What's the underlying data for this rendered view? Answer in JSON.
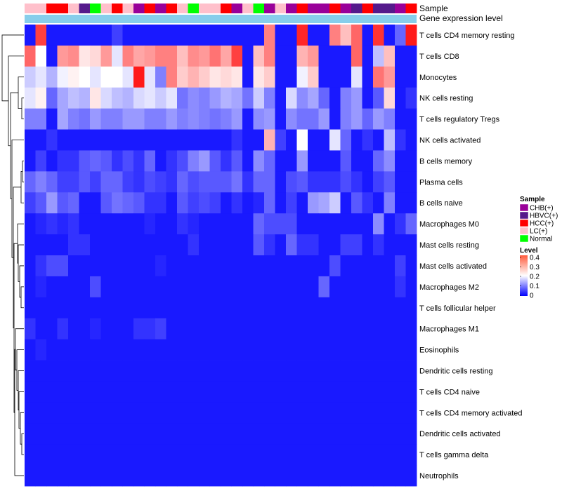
{
  "chart_data": {
    "type": "heatmap",
    "top_annotations": [
      "Sample",
      "Gene expression level"
    ],
    "rows": [
      "T cells CD4 memory resting",
      "T cells CD8",
      "Monocytes",
      "NK cells resting",
      "T cells regulatory  Tregs",
      "NK cells activated",
      "B cells memory",
      "Plasma cells",
      "B cells naive",
      "Macrophages M0",
      "Mast cells resting",
      "Mast cells activated",
      "Macrophages M2",
      "T cells follicular helper",
      "Macrophages M1",
      "Eosinophils",
      "Dendritic cells resting",
      "T cells CD4 naive",
      "T cells CD4 memory activated",
      "Dendritic cells activated",
      "T cells gamma delta",
      "Neutrophils"
    ],
    "sample_groups": [
      "LC",
      "LC",
      "HCC",
      "HCC",
      "LC",
      "HBVC",
      "Normal",
      "LC",
      "HCC",
      "LC",
      "CHB",
      "HCC",
      "CHB",
      "HCC",
      "LC",
      "Normal",
      "LC",
      "LC",
      "HCC",
      "CHB",
      "LC",
      "Normal",
      "CHB",
      "LC",
      "CHB",
      "HCC",
      "CHB",
      "CHB",
      "HCC",
      "CHB",
      "HBVC",
      "HCC",
      "HBVC",
      "HBVC",
      "CHB",
      "HCC"
    ],
    "values": [
      [
        0.02,
        0.35,
        0.02,
        0.02,
        0.02,
        0.02,
        0.02,
        0.02,
        0.05,
        0.02,
        0.02,
        0.02,
        0.02,
        0.02,
        0.02,
        0.02,
        0.02,
        0.02,
        0.02,
        0.02,
        0.02,
        0.02,
        0.3,
        0.02,
        0.02,
        0.37,
        0.02,
        0.02,
        0.3,
        0.25,
        0.32,
        0.02,
        0.36,
        0.02,
        0.08,
        0.38
      ],
      [
        0.32,
        0.2,
        0.02,
        0.28,
        0.29,
        0.22,
        0.23,
        0.28,
        0.18,
        0.3,
        0.27,
        0.28,
        0.3,
        0.3,
        0.25,
        0.29,
        0.28,
        0.31,
        0.27,
        0.35,
        0.02,
        0.25,
        0.3,
        0.02,
        0.02,
        0.26,
        0.28,
        0.02,
        0.02,
        0.02,
        0.32,
        0.02,
        0.15,
        0.25,
        0.02,
        0.02
      ],
      [
        0.16,
        0.18,
        0.14,
        0.19,
        0.21,
        0.2,
        0.18,
        0.2,
        0.2,
        0.18,
        0.38,
        0.18,
        0.1,
        0.3,
        0.24,
        0.26,
        0.24,
        0.22,
        0.23,
        0.22,
        0.02,
        0.22,
        0.24,
        0.02,
        0.02,
        0.19,
        0.24,
        0.02,
        0.02,
        0.02,
        0.18,
        0.02,
        0.31,
        0.28,
        0.02,
        0.02
      ],
      [
        0.18,
        0.21,
        0.08,
        0.13,
        0.15,
        0.14,
        0.22,
        0.17,
        0.15,
        0.14,
        0.17,
        0.18,
        0.16,
        0.18,
        0.09,
        0.11,
        0.1,
        0.12,
        0.14,
        0.13,
        0.09,
        0.16,
        0.1,
        0.02,
        0.17,
        0.11,
        0.13,
        0.08,
        0.02,
        0.1,
        0.12,
        0.02,
        0.07,
        0.23,
        0.02,
        0.04
      ],
      [
        0.1,
        0.1,
        0.02,
        0.13,
        0.1,
        0.09,
        0.12,
        0.1,
        0.1,
        0.12,
        0.12,
        0.1,
        0.1,
        0.12,
        0.1,
        0.11,
        0.1,
        0.09,
        0.1,
        0.12,
        0.02,
        0.11,
        0.12,
        0.02,
        0.11,
        0.09,
        0.09,
        0.12,
        0.02,
        0.1,
        0.12,
        0.08,
        0.12,
        0.1,
        0.02,
        0.02
      ],
      [
        0.02,
        0.02,
        0.04,
        0.02,
        0.02,
        0.02,
        0.02,
        0.02,
        0.02,
        0.02,
        0.02,
        0.02,
        0.02,
        0.02,
        0.02,
        0.02,
        0.02,
        0.02,
        0.02,
        0.04,
        0.02,
        0.02,
        0.26,
        0.05,
        0.02,
        0.2,
        0.02,
        0.02,
        0.18,
        0.08,
        0.02,
        0.04,
        0.02,
        0.15,
        0.04,
        0.02
      ],
      [
        0.02,
        0.05,
        0.02,
        0.04,
        0.04,
        0.07,
        0.08,
        0.07,
        0.04,
        0.06,
        0.04,
        0.08,
        0.02,
        0.04,
        0.06,
        0.1,
        0.12,
        0.07,
        0.04,
        0.07,
        0.02,
        0.11,
        0.08,
        0.02,
        0.02,
        0.12,
        0.02,
        0.02,
        0.02,
        0.07,
        0.02,
        0.02,
        0.08,
        0.11,
        0.02,
        0.02
      ],
      [
        0.08,
        0.1,
        0.08,
        0.05,
        0.05,
        0.07,
        0.05,
        0.08,
        0.08,
        0.05,
        0.04,
        0.06,
        0.05,
        0.04,
        0.08,
        0.06,
        0.07,
        0.07,
        0.07,
        0.09,
        0.04,
        0.08,
        0.08,
        0.02,
        0.06,
        0.07,
        0.04,
        0.04,
        0.04,
        0.06,
        0.04,
        0.02,
        0.05,
        0.07,
        0.02,
        0.02
      ],
      [
        0.05,
        0.07,
        0.12,
        0.07,
        0.08,
        0.02,
        0.02,
        0.07,
        0.09,
        0.08,
        0.07,
        0.04,
        0.04,
        0.02,
        0.07,
        0.05,
        0.06,
        0.05,
        0.02,
        0.04,
        0.02,
        0.03,
        0.08,
        0.02,
        0.05,
        0.02,
        0.12,
        0.13,
        0.16,
        0.02,
        0.07,
        0.04,
        0.02,
        0.1,
        0.02,
        0.02
      ],
      [
        0.02,
        0.03,
        0.04,
        0.03,
        0.04,
        0.02,
        0.02,
        0.02,
        0.02,
        0.02,
        0.02,
        0.03,
        0.02,
        0.02,
        0.04,
        0.03,
        0.02,
        0.02,
        0.02,
        0.02,
        0.02,
        0.08,
        0.06,
        0.06,
        0.06,
        0.02,
        0.02,
        0.02,
        0.02,
        0.02,
        0.02,
        0.02,
        0.11,
        0.02,
        0.04,
        0.08
      ],
      [
        0.02,
        0.02,
        0.02,
        0.02,
        0.04,
        0.04,
        0.02,
        0.02,
        0.02,
        0.02,
        0.02,
        0.02,
        0.02,
        0.02,
        0.02,
        0.04,
        0.02,
        0.02,
        0.02,
        0.02,
        0.02,
        0.07,
        0.04,
        0.02,
        0.08,
        0.04,
        0.04,
        0.02,
        0.02,
        0.05,
        0.05,
        0.02,
        0.04,
        0.02,
        0.02,
        0.02
      ],
      [
        0.02,
        0.04,
        0.06,
        0.06,
        0.02,
        0.02,
        0.02,
        0.02,
        0.02,
        0.02,
        0.02,
        0.02,
        0.03,
        0.02,
        0.02,
        0.02,
        0.02,
        0.02,
        0.02,
        0.02,
        0.02,
        0.02,
        0.02,
        0.02,
        0.02,
        0.02,
        0.02,
        0.02,
        0.06,
        0.02,
        0.02,
        0.02,
        0.02,
        0.02,
        0.05,
        0.02
      ],
      [
        0.02,
        0.03,
        0.02,
        0.02,
        0.02,
        0.02,
        0.06,
        0.02,
        0.02,
        0.02,
        0.02,
        0.02,
        0.02,
        0.02,
        0.02,
        0.02,
        0.02,
        0.02,
        0.02,
        0.02,
        0.02,
        0.02,
        0.02,
        0.02,
        0.02,
        0.02,
        0.02,
        0.08,
        0.02,
        0.02,
        0.02,
        0.02,
        0.02,
        0.02,
        0.04,
        0.02
      ],
      [
        0.02,
        0.02,
        0.02,
        0.02,
        0.02,
        0.02,
        0.02,
        0.02,
        0.02,
        0.02,
        0.02,
        0.02,
        0.02,
        0.02,
        0.02,
        0.02,
        0.02,
        0.02,
        0.02,
        0.02,
        0.02,
        0.02,
        0.02,
        0.02,
        0.02,
        0.02,
        0.02,
        0.02,
        0.02,
        0.02,
        0.02,
        0.02,
        0.02,
        0.02,
        0.02,
        0.02
      ],
      [
        0.04,
        0.02,
        0.02,
        0.04,
        0.02,
        0.02,
        0.03,
        0.02,
        0.02,
        0.02,
        0.04,
        0.04,
        0.05,
        0.02,
        0.02,
        0.02,
        0.02,
        0.02,
        0.02,
        0.02,
        0.02,
        0.02,
        0.02,
        0.02,
        0.02,
        0.02,
        0.02,
        0.02,
        0.02,
        0.02,
        0.02,
        0.02,
        0.02,
        0.02,
        0.02,
        0.02
      ],
      [
        0.02,
        0.03,
        0.02,
        0.02,
        0.02,
        0.02,
        0.02,
        0.02,
        0.02,
        0.02,
        0.02,
        0.02,
        0.02,
        0.02,
        0.02,
        0.02,
        0.02,
        0.02,
        0.02,
        0.02,
        0.02,
        0.02,
        0.02,
        0.02,
        0.02,
        0.02,
        0.02,
        0.02,
        0.02,
        0.02,
        0.02,
        0.02,
        0.02,
        0.02,
        0.02,
        0.02
      ],
      [
        0.02,
        0.02,
        0.02,
        0.02,
        0.02,
        0.02,
        0.02,
        0.02,
        0.02,
        0.02,
        0.02,
        0.02,
        0.02,
        0.02,
        0.02,
        0.02,
        0.02,
        0.02,
        0.02,
        0.02,
        0.02,
        0.02,
        0.02,
        0.02,
        0.02,
        0.02,
        0.02,
        0.02,
        0.02,
        0.02,
        0.02,
        0.02,
        0.02,
        0.02,
        0.02,
        0.02
      ],
      [
        0.02,
        0.02,
        0.02,
        0.02,
        0.02,
        0.02,
        0.02,
        0.02,
        0.02,
        0.02,
        0.02,
        0.02,
        0.02,
        0.02,
        0.02,
        0.02,
        0.02,
        0.02,
        0.02,
        0.02,
        0.02,
        0.02,
        0.02,
        0.02,
        0.02,
        0.02,
        0.02,
        0.02,
        0.02,
        0.02,
        0.02,
        0.02,
        0.02,
        0.02,
        0.02,
        0.02
      ],
      [
        0.02,
        0.02,
        0.02,
        0.02,
        0.02,
        0.02,
        0.02,
        0.02,
        0.02,
        0.02,
        0.02,
        0.02,
        0.02,
        0.02,
        0.02,
        0.02,
        0.02,
        0.02,
        0.02,
        0.02,
        0.02,
        0.02,
        0.02,
        0.02,
        0.02,
        0.02,
        0.02,
        0.02,
        0.02,
        0.02,
        0.02,
        0.02,
        0.02,
        0.02,
        0.02,
        0.02
      ],
      [
        0.02,
        0.02,
        0.02,
        0.02,
        0.02,
        0.02,
        0.02,
        0.02,
        0.02,
        0.02,
        0.02,
        0.02,
        0.02,
        0.02,
        0.02,
        0.02,
        0.02,
        0.02,
        0.02,
        0.02,
        0.02,
        0.02,
        0.02,
        0.02,
        0.02,
        0.02,
        0.02,
        0.02,
        0.02,
        0.02,
        0.02,
        0.02,
        0.02,
        0.02,
        0.02,
        0.02
      ],
      [
        0.02,
        0.02,
        0.02,
        0.02,
        0.02,
        0.02,
        0.02,
        0.02,
        0.02,
        0.02,
        0.02,
        0.02,
        0.02,
        0.02,
        0.02,
        0.02,
        0.02,
        0.02,
        0.02,
        0.02,
        0.02,
        0.02,
        0.02,
        0.02,
        0.02,
        0.02,
        0.02,
        0.02,
        0.02,
        0.02,
        0.02,
        0.02,
        0.02,
        0.02,
        0.02,
        0.02
      ],
      [
        0.02,
        0.02,
        0.02,
        0.02,
        0.02,
        0.02,
        0.02,
        0.02,
        0.02,
        0.02,
        0.02,
        0.02,
        0.02,
        0.02,
        0.02,
        0.02,
        0.02,
        0.02,
        0.02,
        0.02,
        0.02,
        0.02,
        0.02,
        0.02,
        0.02,
        0.02,
        0.02,
        0.02,
        0.02,
        0.02,
        0.02,
        0.02,
        0.02,
        0.02,
        0.02,
        0.02
      ]
    ],
    "color_scale": {
      "low": "#0000ff",
      "mid": "#ffffff",
      "high": "#ff0000",
      "mid_value": 0.2,
      "range": [
        0,
        0.4
      ]
    },
    "legends": {
      "sample": {
        "title": "Sample",
        "entries": [
          {
            "key": "CHB",
            "label": "CHB(+)",
            "color": "#990099"
          },
          {
            "key": "HBVC",
            "label": "HBVC(+)",
            "color": "#551a8b"
          },
          {
            "key": "HCC",
            "label": "HCC(+)",
            "color": "#ff0000"
          },
          {
            "key": "LC",
            "label": "LC(+)",
            "color": "#ffc0cb"
          },
          {
            "key": "Normal",
            "label": "Normal",
            "color": "#00ff00"
          }
        ]
      },
      "level": {
        "title": "Level",
        "ticks": [
          "0.4",
          "0.3",
          "0.2",
          "0.1",
          "0"
        ]
      }
    },
    "expression_bar_color": "#87ceeb"
  }
}
